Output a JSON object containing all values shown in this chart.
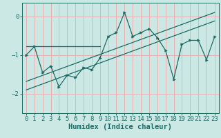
{
  "xlabel": "Humidex (Indice chaleur)",
  "bg_color": "#cce8e4",
  "grid_color": "#e8b0b0",
  "line_color": "#1a6b65",
  "xlim": [
    -0.5,
    23.5
  ],
  "ylim": [
    -2.5,
    0.35
  ],
  "yticks": [
    0,
    -1,
    -2
  ],
  "xticks": [
    0,
    1,
    2,
    3,
    4,
    5,
    6,
    7,
    8,
    9,
    10,
    11,
    12,
    13,
    14,
    15,
    16,
    17,
    18,
    19,
    20,
    21,
    22,
    23
  ],
  "data_x": [
    0,
    1,
    2,
    3,
    4,
    5,
    6,
    7,
    8,
    9,
    10,
    11,
    12,
    13,
    14,
    15,
    16,
    17,
    18,
    19,
    20,
    21,
    22,
    23
  ],
  "data_y": [
    -1.0,
    -0.78,
    -1.45,
    -1.28,
    -1.82,
    -1.52,
    -1.58,
    -1.32,
    -1.38,
    -1.08,
    -0.52,
    -0.42,
    0.1,
    -0.52,
    -0.42,
    -0.32,
    -0.55,
    -0.88,
    -1.62,
    -0.72,
    -0.62,
    -0.62,
    -1.12,
    -0.52
  ],
  "reg_line1_x": [
    0,
    23
  ],
  "reg_line1_y": [
    -1.9,
    -0.12
  ],
  "reg_line2_x": [
    0,
    23
  ],
  "reg_line2_y": [
    -1.68,
    0.1
  ],
  "flat_line_x": [
    0,
    9
  ],
  "flat_line_y": [
    -0.78,
    -0.78
  ],
  "tick_fontsize": 6.5,
  "label_fontsize": 7.5
}
